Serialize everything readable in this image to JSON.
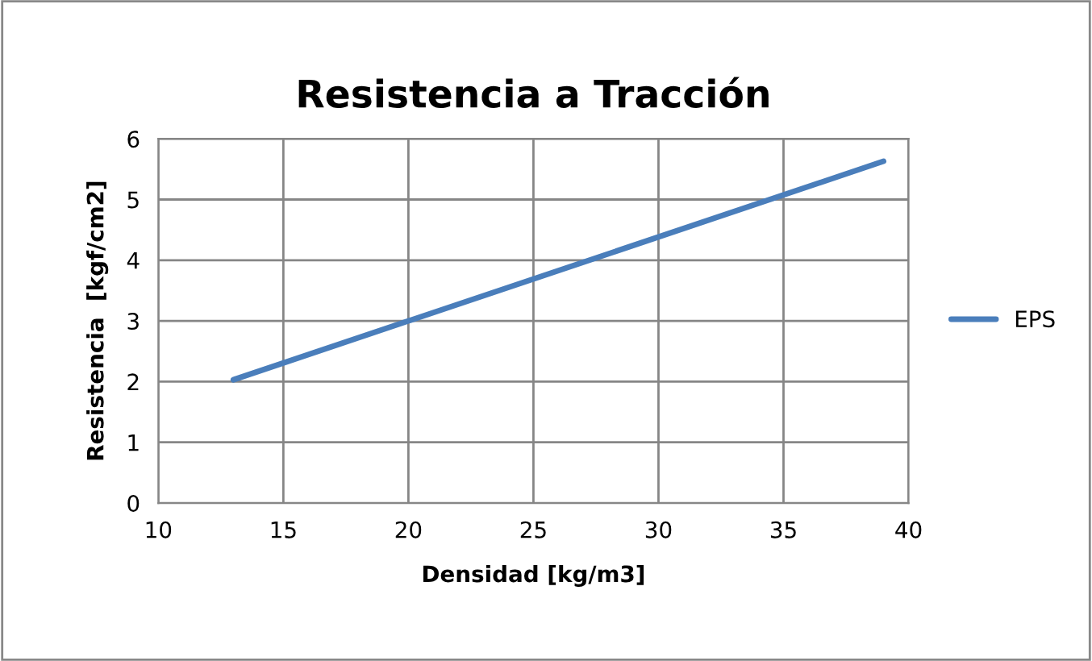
{
  "chart_data": {
    "type": "line",
    "title": "Resistencia a Tracción",
    "xlabel": "Densidad [kg/m3]",
    "ylabel": "Resistencia  [kgf/cm2]",
    "series": [
      {
        "name": "EPS",
        "color": "#4a7ebb",
        "x": [
          13,
          39
        ],
        "values": [
          2.03,
          5.63
        ]
      }
    ],
    "xlim": [
      10,
      40
    ],
    "xticks": [
      10,
      15,
      20,
      25,
      30,
      35,
      40
    ],
    "ylim": [
      0,
      6
    ],
    "yticks": [
      0,
      1,
      2,
      3,
      4,
      5,
      6
    ],
    "grid": true,
    "legend": "right",
    "marker": "none",
    "line_style": "solid"
  }
}
